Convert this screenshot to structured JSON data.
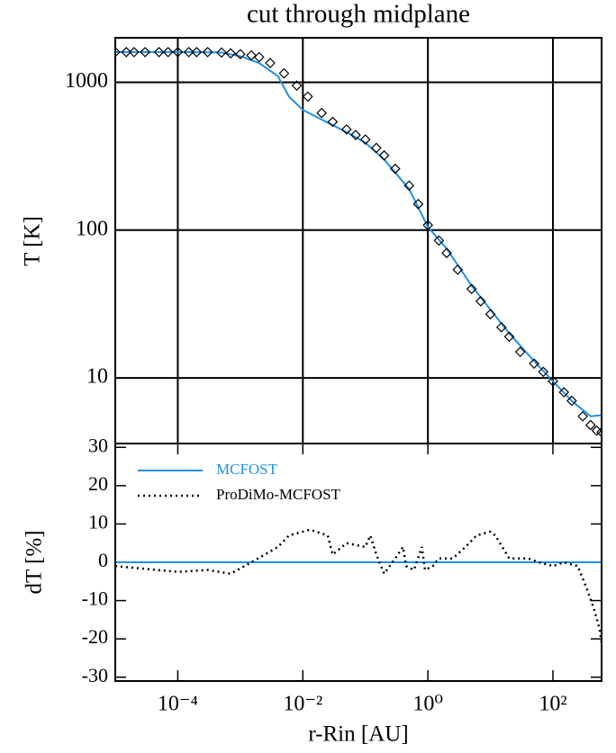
{
  "chart_data": [
    {
      "type": "line",
      "title": "cut through midplane",
      "y_label": "T [K]",
      "xscale": "log",
      "yscale": "log",
      "grid": true,
      "xlim": [
        1e-05,
        600
      ],
      "ylim": [
        3.6,
        2000
      ],
      "xticks": [
        0.0001,
        0.01,
        1,
        100
      ],
      "yticks": [
        10,
        100,
        1000
      ],
      "series": [
        {
          "color": "#1f8fe8",
          "style": "line",
          "x": [
            1e-05,
            0.0001,
            0.0005,
            0.001,
            0.002,
            0.004,
            0.006,
            0.01,
            0.02,
            0.05,
            0.1,
            0.2,
            0.5,
            1,
            2,
            5,
            10,
            20,
            50,
            100,
            200,
            400,
            600
          ],
          "values": [
            1600,
            1600,
            1590,
            1500,
            1350,
            1100,
            800,
            650,
            560,
            460,
            390,
            300,
            190,
            105,
            75,
            42,
            29,
            20,
            13,
            9.5,
            7,
            5.5,
            5.6
          ]
        },
        {
          "color": "#000000",
          "style": "diamond",
          "x": [
            1e-05,
            1.5e-05,
            2e-05,
            3e-05,
            5e-05,
            7e-05,
            0.0001,
            0.00015,
            0.0002,
            0.0003,
            0.0005,
            0.0007,
            0.001,
            0.0015,
            0.002,
            0.003,
            0.005,
            0.008,
            0.012,
            0.02,
            0.03,
            0.05,
            0.07,
            0.1,
            0.15,
            0.2,
            0.3,
            0.5,
            0.7,
            1,
            1.5,
            2,
            3,
            5,
            7,
            10,
            15,
            20,
            30,
            50,
            70,
            100,
            150,
            200,
            300,
            400,
            500,
            600
          ],
          "values": [
            1600,
            1600,
            1600,
            1600,
            1600,
            1600,
            1600,
            1600,
            1600,
            1600,
            1590,
            1570,
            1550,
            1520,
            1480,
            1350,
            1150,
            950,
            800,
            620,
            540,
            480,
            440,
            410,
            360,
            320,
            260,
            200,
            150,
            108,
            85,
            70,
            54,
            40,
            33,
            27,
            22,
            19,
            15,
            12.5,
            11,
            9.5,
            8,
            7,
            5.5,
            4.8,
            4.4,
            4.3
          ]
        }
      ]
    },
    {
      "type": "line",
      "x_label": "r-Rin [AU]",
      "y_label": "dT [%]",
      "xscale": "log",
      "yscale": "linear",
      "grid": false,
      "legend": "upper left",
      "xlim": [
        1e-05,
        600
      ],
      "ylim": [
        -31,
        31
      ],
      "xticks": [
        {
          "value": 0.0001,
          "label": "10⁻⁴"
        },
        {
          "value": 0.01,
          "label": "10⁻²"
        },
        {
          "value": 1,
          "label": "10⁰"
        },
        {
          "value": 100,
          "label": "10²"
        }
      ],
      "yticks": [
        -30,
        -20,
        -10,
        0,
        10,
        20,
        30
      ],
      "series": [
        {
          "name": "MCFOST",
          "color": "#1f8fe8",
          "style": "line",
          "x": [
            1e-05,
            600
          ],
          "values": [
            0,
            0
          ]
        },
        {
          "name": "ProDiMo-MCFOST",
          "color": "#000000",
          "style": "dotted",
          "x": [
            1e-05,
            0.0001,
            0.0003,
            0.0007,
            0.0015,
            0.004,
            0.006,
            0.01,
            0.013,
            0.025,
            0.03,
            0.05,
            0.1,
            0.12,
            0.15,
            0.2,
            0.3,
            0.4,
            0.45,
            0.6,
            0.8,
            0.9,
            1.2,
            1.5,
            2.5,
            4,
            6,
            10,
            12,
            20,
            40,
            60,
            100,
            150,
            250,
            350,
            450,
            550,
            600
          ],
          "values": [
            -1,
            -2.5,
            -2,
            -3,
            0,
            4,
            7,
            8,
            8.5,
            7,
            2,
            5,
            4,
            7,
            2,
            -3,
            1,
            4,
            -1,
            -2,
            4,
            -2,
            -1,
            1,
            1,
            4,
            7,
            8,
            7,
            1,
            1,
            0,
            -1,
            0,
            -1,
            -7,
            -12,
            -17,
            -21
          ]
        }
      ]
    }
  ]
}
